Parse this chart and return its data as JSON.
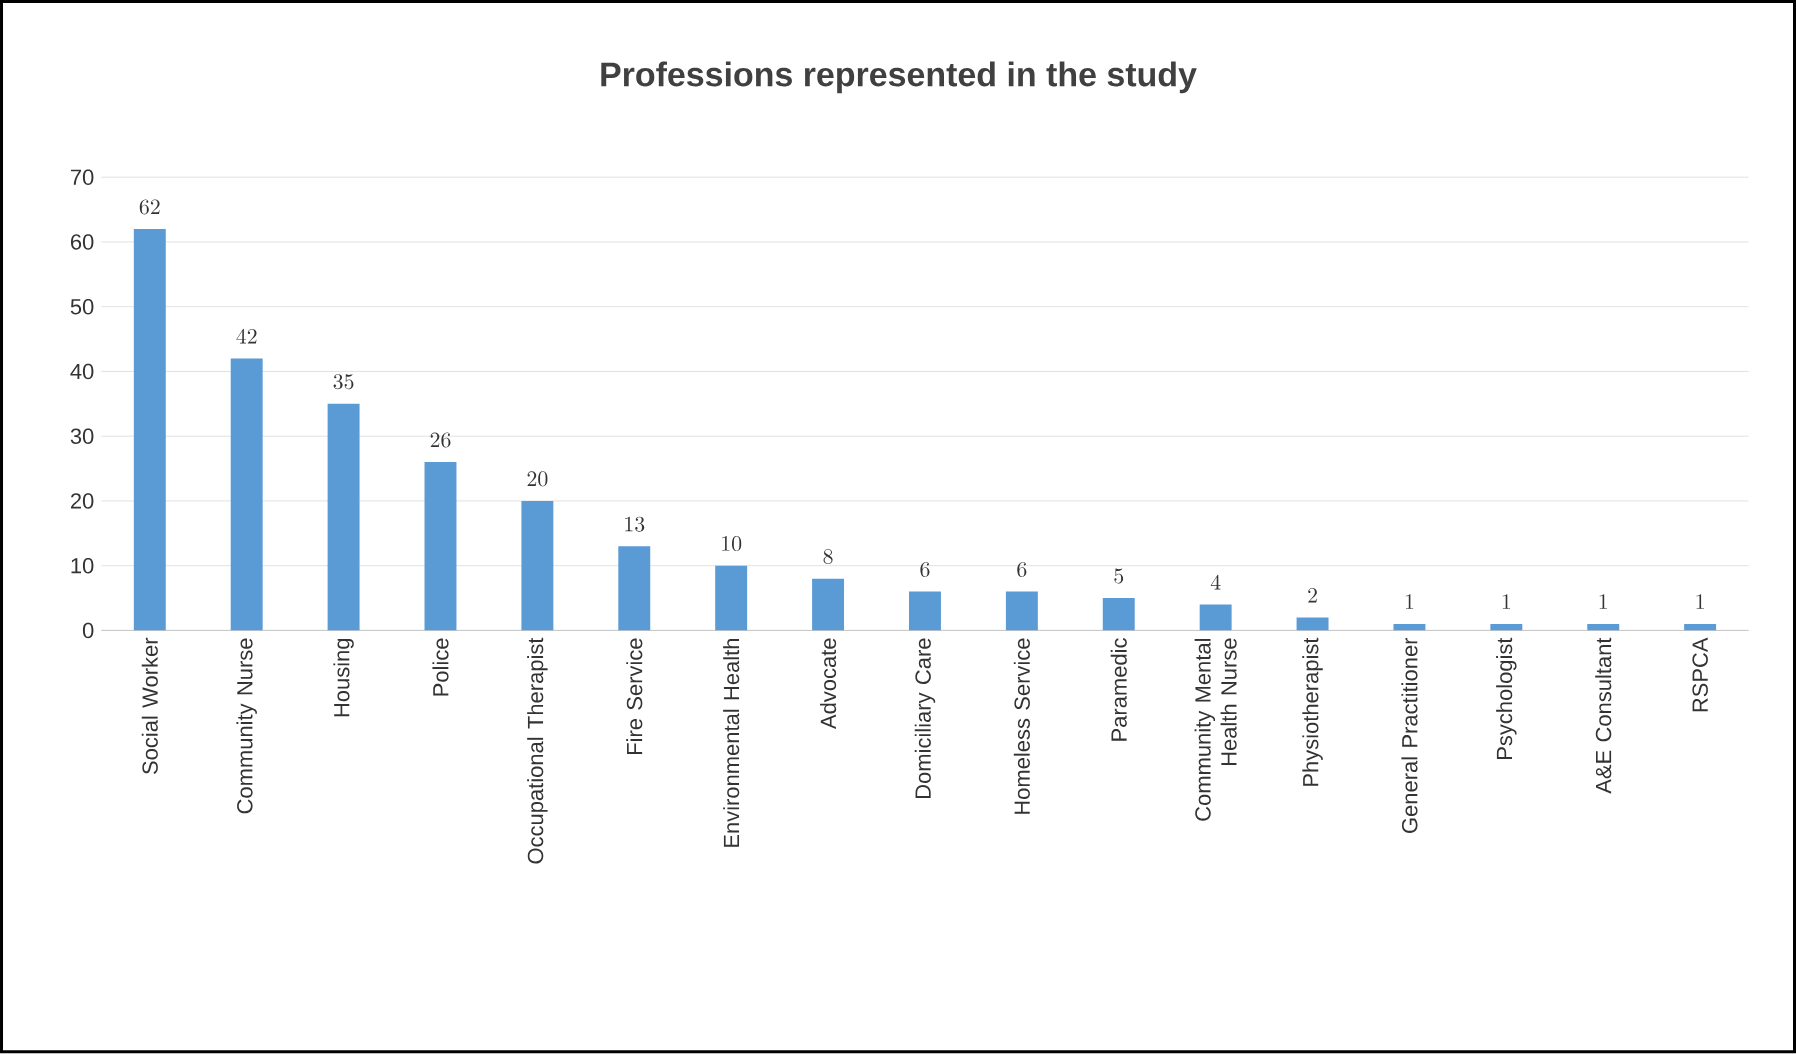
{
  "chart_data": {
    "type": "bar",
    "title": "Professions represented in the study",
    "categories": [
      "Social Worker",
      "Community Nurse",
      "Housing",
      "Police",
      "Occupational Therapist",
      "Fire Service",
      "Environmental Health",
      "Advocate",
      "Domiciliary Care",
      "Homeless Service",
      "Paramedic",
      "Community Mental Health Nurse",
      "Physiotherapist",
      "General Practitioner",
      "Psychologist",
      "A&E Consultant",
      "RSPCA"
    ],
    "values": [
      62,
      42,
      35,
      26,
      20,
      13,
      10,
      8,
      6,
      6,
      5,
      4,
      2,
      1,
      1,
      1,
      1
    ],
    "color": "#5b9bd5",
    "ylim": [
      0,
      70
    ],
    "yticks": [
      0,
      10,
      20,
      30,
      40,
      50,
      60,
      70
    ],
    "grid": "y",
    "data_labels": true
  }
}
